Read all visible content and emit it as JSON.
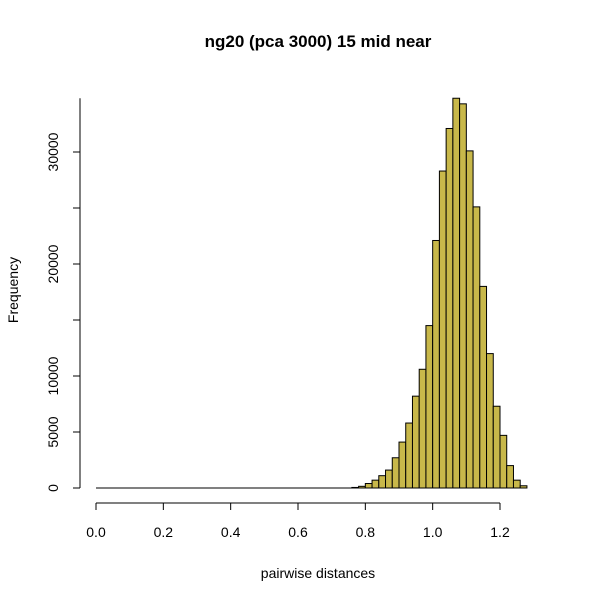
{
  "chart_data": {
    "type": "bar",
    "title": "ng20 (pca 3000) 15 mid near",
    "xlabel": "pairwise distances",
    "ylabel": "Frequency",
    "bar_color": "#c8b84a",
    "bin_width": 0.02,
    "bins_start": [
      0.76,
      0.78,
      0.8,
      0.82,
      0.84,
      0.86,
      0.88,
      0.9,
      0.92,
      0.94,
      0.96,
      0.98,
      1.0,
      1.02,
      1.04,
      1.06,
      1.08,
      1.1,
      1.12,
      1.14,
      1.16,
      1.18,
      1.2,
      1.22,
      1.24,
      1.26
    ],
    "values": [
      50,
      150,
      400,
      700,
      1100,
      1600,
      2700,
      4100,
      5800,
      8200,
      10600,
      14500,
      22100,
      28300,
      32100,
      34800,
      34300,
      30100,
      25100,
      18000,
      12000,
      7300,
      4700,
      2000,
      700,
      200
    ],
    "xlim": [
      0.0,
      1.32
    ],
    "ylim": [
      0,
      35000
    ],
    "x_ticks": [
      0.0,
      0.2,
      0.4,
      0.6,
      0.8,
      1.0,
      1.2
    ],
    "x_tick_labels": [
      "0.0",
      "0.2",
      "0.4",
      "0.6",
      "0.8",
      "1.0",
      "1.2"
    ],
    "y_ticks": [
      0,
      5000,
      10000,
      20000,
      30000
    ],
    "y_tick_labels": [
      "0",
      "5000",
      "10000",
      "20000",
      "30000"
    ],
    "grid": false,
    "legend": "none"
  }
}
